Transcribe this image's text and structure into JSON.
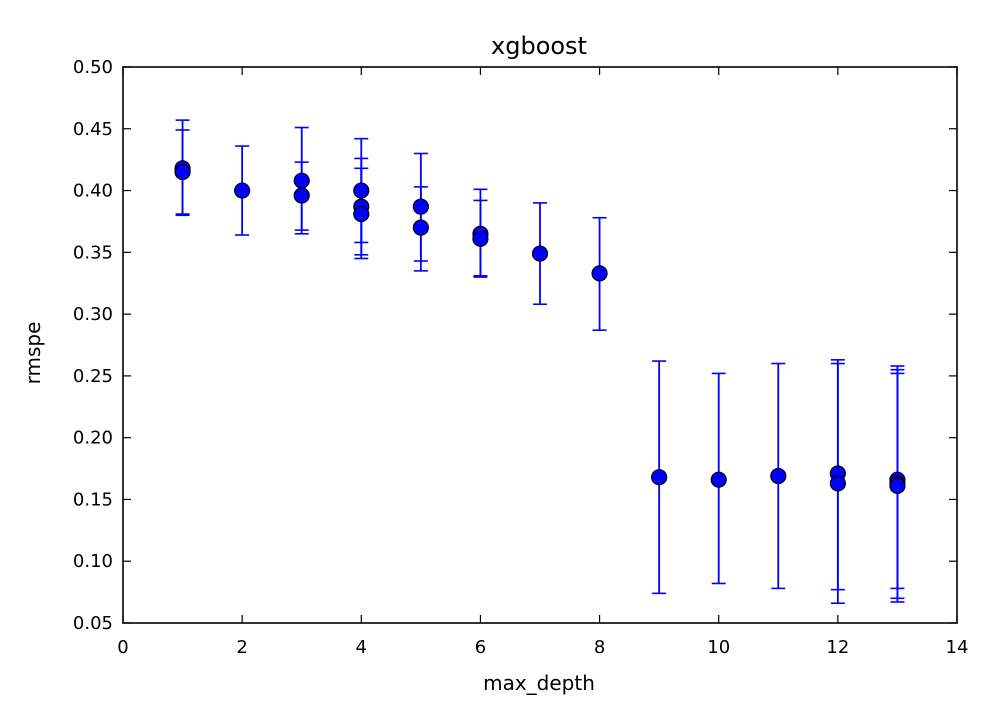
{
  "chart_data": {
    "type": "scatter",
    "title": "xgboost",
    "xlabel": "max_depth",
    "ylabel": "rmspe",
    "xlim": [
      0,
      14
    ],
    "ylim": [
      0.05,
      0.5
    ],
    "xticks": [
      "0",
      "2",
      "4",
      "6",
      "8",
      "10",
      "12",
      "14"
    ],
    "yticks": [
      "0.05",
      "0.10",
      "0.15",
      "0.20",
      "0.25",
      "0.30",
      "0.35",
      "0.40",
      "0.45",
      "0.50"
    ],
    "grid": false,
    "marker_color": "#0000ff",
    "errorbar_color": "#0000ff",
    "points": [
      {
        "x": 1,
        "y": 0.418,
        "err_low": 0.38,
        "err_high": 0.457
      },
      {
        "x": 1,
        "y": 0.415,
        "err_low": 0.381,
        "err_high": 0.449
      },
      {
        "x": 2,
        "y": 0.4,
        "err_low": 0.364,
        "err_high": 0.436
      },
      {
        "x": 3,
        "y": 0.408,
        "err_low": 0.365,
        "err_high": 0.451
      },
      {
        "x": 3,
        "y": 0.396,
        "err_low": 0.368,
        "err_high": 0.423
      },
      {
        "x": 4,
        "y": 0.4,
        "err_low": 0.358,
        "err_high": 0.442
      },
      {
        "x": 4,
        "y": 0.387,
        "err_low": 0.348,
        "err_high": 0.426
      },
      {
        "x": 4,
        "y": 0.381,
        "err_low": 0.345,
        "err_high": 0.418
      },
      {
        "x": 5,
        "y": 0.387,
        "err_low": 0.343,
        "err_high": 0.43
      },
      {
        "x": 5,
        "y": 0.37,
        "err_low": 0.335,
        "err_high": 0.403
      },
      {
        "x": 6,
        "y": 0.365,
        "err_low": 0.33,
        "err_high": 0.401
      },
      {
        "x": 6,
        "y": 0.361,
        "err_low": 0.331,
        "err_high": 0.392
      },
      {
        "x": 7,
        "y": 0.349,
        "err_low": 0.308,
        "err_high": 0.39
      },
      {
        "x": 8,
        "y": 0.333,
        "err_low": 0.287,
        "err_high": 0.378
      },
      {
        "x": 9,
        "y": 0.168,
        "err_low": 0.074,
        "err_high": 0.262
      },
      {
        "x": 10,
        "y": 0.166,
        "err_low": 0.082,
        "err_high": 0.252
      },
      {
        "x": 11,
        "y": 0.169,
        "err_low": 0.078,
        "err_high": 0.26
      },
      {
        "x": 12,
        "y": 0.171,
        "err_low": 0.077,
        "err_high": 0.263
      },
      {
        "x": 12,
        "y": 0.163,
        "err_low": 0.066,
        "err_high": 0.26
      },
      {
        "x": 13,
        "y": 0.166,
        "err_low": 0.067,
        "err_high": 0.258
      },
      {
        "x": 13,
        "y": 0.163,
        "err_low": 0.07,
        "err_high": 0.255
      },
      {
        "x": 13,
        "y": 0.161,
        "err_low": 0.078,
        "err_high": 0.252
      }
    ]
  }
}
